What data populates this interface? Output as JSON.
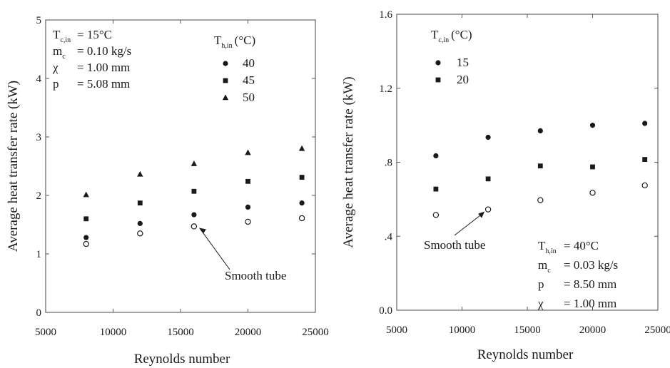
{
  "chart_data": [
    {
      "type": "scatter",
      "xlabel": "Reynolds number",
      "ylabel": "Average heat transfer rate (kW)",
      "xlim": [
        5000,
        25000
      ],
      "ylim": [
        0,
        5
      ],
      "xticks": [
        "5000",
        "10000",
        "15000",
        "20000",
        "25000"
      ],
      "yticks": [
        "0",
        "1",
        "2",
        "3",
        "4",
        "5"
      ],
      "xtick_values": [
        5000,
        10000,
        15000,
        20000,
        25000
      ],
      "ytick_values": [
        0,
        1,
        2,
        3,
        4,
        5
      ],
      "grid": false,
      "conditions": [
        {
          "label": "T",
          "sub": "c,in",
          "text": "= 15°C"
        },
        {
          "label": "m",
          "sub": "c",
          "text": "= 0.10 kg/s"
        },
        {
          "label": "χ",
          "sub": "",
          "text": "= 1.00 mm"
        },
        {
          "label": "p",
          "sub": "",
          "text": "= 5.08 mm"
        }
      ],
      "legend_title": {
        "label": "T",
        "sub": "h,in",
        "unit": "(°C)"
      },
      "legend_placement": "top-center",
      "series": [
        {
          "name": "40",
          "marker": "circle-filled",
          "x": [
            8000,
            12000,
            16000,
            20000,
            24000
          ],
          "y": [
            1.28,
            1.52,
            1.67,
            1.8,
            1.87
          ]
        },
        {
          "name": "45",
          "marker": "square-filled",
          "x": [
            8000,
            12000,
            16000,
            20000,
            24000
          ],
          "y": [
            1.6,
            1.87,
            2.07,
            2.24,
            2.31
          ]
        },
        {
          "name": "50",
          "marker": "triangle-filled",
          "x": [
            8000,
            12000,
            16000,
            20000,
            24000
          ],
          "y": [
            2.01,
            2.36,
            2.54,
            2.73,
            2.8
          ]
        },
        {
          "name": "",
          "marker": "circle-open",
          "x": [
            8000,
            12000,
            16000,
            20000,
            24000
          ],
          "y": [
            1.17,
            1.35,
            1.47,
            1.55,
            1.61
          ]
        }
      ],
      "annotation": {
        "text": "Smooth tube",
        "points_to": [
          16000,
          1.47
        ]
      }
    },
    {
      "type": "scatter",
      "xlabel": "Reynolds number",
      "ylabel": "Average heat transfer rate (kW)",
      "xlim": [
        5000,
        25000
      ],
      "ylim": [
        0,
        1.6
      ],
      "xticks": [
        "5000",
        "10000",
        "15000",
        "20000",
        "25000"
      ],
      "yticks": [
        "0.0",
        ".4",
        ".8",
        "1.2",
        "1.6"
      ],
      "xtick_values": [
        5000,
        10000,
        15000,
        20000,
        25000
      ],
      "ytick_values": [
        0,
        0.4,
        0.8,
        1.2,
        1.6
      ],
      "grid": false,
      "conditions": [
        {
          "label": "T",
          "sub": "h,in",
          "text": "= 40°C"
        },
        {
          "label": "m",
          "sub": "c",
          "text": "= 0.03 kg/s"
        },
        {
          "label": "p",
          "sub": "",
          "text": "= 8.50 mm"
        },
        {
          "label": "χ",
          "sub": "",
          "text": "= 1.00 mm"
        }
      ],
      "legend_title": {
        "label": "T",
        "sub": "c,in",
        "unit": "(°C)"
      },
      "legend_placement": "top-left",
      "series": [
        {
          "name": "15",
          "marker": "circle-filled",
          "x": [
            8000,
            12000,
            16000,
            20000,
            24000
          ],
          "y": [
            0.835,
            0.935,
            0.97,
            1.0,
            1.01
          ]
        },
        {
          "name": "20",
          "marker": "square-filled",
          "x": [
            8000,
            12000,
            16000,
            20000,
            24000
          ],
          "y": [
            0.655,
            0.71,
            0.78,
            0.775,
            0.815
          ]
        },
        {
          "name": "",
          "marker": "circle-open",
          "x": [
            8000,
            12000,
            16000,
            20000,
            24000
          ],
          "y": [
            0.515,
            0.545,
            0.595,
            0.635,
            0.675
          ]
        }
      ],
      "annotation": {
        "text": "Smooth tube",
        "points_to": [
          12000,
          0.545
        ]
      }
    }
  ]
}
